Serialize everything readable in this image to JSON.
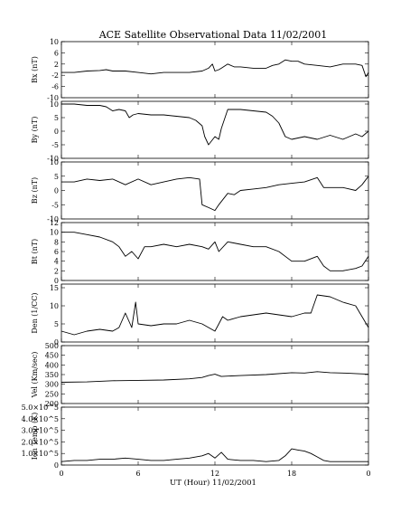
{
  "title": "ACE Satellite Observational Data   11/02/2001",
  "x_axis": {
    "label": "UT (Hour)  11/02/2001",
    "ticks": [
      {
        "hour": 0,
        "label": "0"
      },
      {
        "hour": 6,
        "label": "6"
      },
      {
        "hour": 12,
        "label": "12"
      },
      {
        "hour": 18,
        "label": "18"
      },
      {
        "hour": 24,
        "label": "0"
      }
    ]
  },
  "chart_data": [
    {
      "type": "line",
      "ylabel": "Bx (nT)",
      "ylim": [
        -10,
        10
      ],
      "yticks": [
        {
          "v": 10,
          "label": "10"
        },
        {
          "v": 6,
          "label": "6"
        },
        {
          "v": 2,
          "label": "2"
        },
        {
          "v": -2,
          "label": "-2"
        },
        {
          "v": -6,
          "label": "-6"
        },
        {
          "v": -10,
          "label": "-10"
        }
      ],
      "x": [
        0,
        1,
        2,
        3,
        3.5,
        4,
        5,
        6,
        7,
        8,
        9,
        10,
        11,
        11.5,
        11.8,
        12,
        12.3,
        12.5,
        13,
        13.5,
        14,
        15,
        16,
        16.5,
        17,
        17.5,
        18,
        18.5,
        19,
        20,
        21,
        22,
        23,
        23.5,
        23.8,
        24
      ],
      "values": [
        -1,
        -1,
        -0.5,
        -0.3,
        0,
        -0.5,
        -0.5,
        -1,
        -1.5,
        -1,
        -1,
        -1,
        -0.5,
        0.5,
        2,
        -0.5,
        0,
        0.5,
        2,
        1,
        1,
        0.5,
        0.5,
        1.5,
        2,
        3.5,
        3,
        3,
        2,
        1.5,
        1,
        2,
        2,
        1.5,
        -2.5,
        -1
      ]
    },
    {
      "type": "line",
      "ylabel": "By (nT)",
      "ylim": [
        -10,
        11
      ],
      "yticks": [
        {
          "v": 10,
          "label": "10"
        },
        {
          "v": 5,
          "label": "5"
        },
        {
          "v": 0,
          "label": "0"
        },
        {
          "v": -5,
          "label": "-5"
        },
        {
          "v": -10,
          "label": "-10"
        }
      ],
      "x": [
        0,
        1,
        2,
        3,
        3.5,
        4,
        4.5,
        5,
        5.3,
        5.6,
        6,
        7,
        8,
        9,
        10,
        10.5,
        11,
        11.2,
        11.5,
        12,
        12.3,
        12.5,
        13,
        14,
        15,
        16,
        16.5,
        17,
        17.5,
        18,
        19,
        20,
        21,
        22,
        23,
        23.5,
        24
      ],
      "values": [
        10,
        10,
        9.5,
        9.5,
        9,
        7.5,
        8,
        7.5,
        5,
        6,
        6.5,
        6,
        6,
        5.5,
        5,
        4,
        2,
        -2,
        -5,
        -2,
        -3,
        1,
        8,
        8,
        7.5,
        7,
        5.5,
        3,
        -2,
        -3,
        -2,
        -3,
        -1.5,
        -3,
        -1,
        -2,
        0
      ]
    },
    {
      "type": "line",
      "ylabel": "Bz (nT)",
      "ylim": [
        -10,
        10
      ],
      "yticks": [
        {
          "v": 10,
          "label": "10"
        },
        {
          "v": 5,
          "label": "5"
        },
        {
          "v": 0,
          "label": "0"
        },
        {
          "v": -5,
          "label": "-5"
        },
        {
          "v": -10,
          "label": "-10"
        }
      ],
      "x": [
        0,
        1,
        2,
        3,
        4,
        5,
        6,
        7,
        8,
        9,
        10,
        10.8,
        11,
        11.5,
        12,
        12.3,
        13,
        13.5,
        14,
        15,
        16,
        17,
        18,
        19,
        20,
        20.5,
        21,
        22,
        23,
        23.5,
        24
      ],
      "values": [
        3,
        3,
        4,
        3.5,
        4,
        2,
        4,
        2,
        3,
        4,
        4.5,
        4,
        -5,
        -6,
        -7,
        -5,
        -1,
        -1.5,
        0,
        0.5,
        1,
        2,
        2.5,
        3,
        4.5,
        1,
        1,
        1,
        0,
        2,
        5
      ]
    },
    {
      "type": "line",
      "ylabel": "Bt (nT)",
      "ylim": [
        0,
        12
      ],
      "yticks": [
        {
          "v": 12,
          "label": "12"
        },
        {
          "v": 10,
          "label": "10"
        },
        {
          "v": 8,
          "label": "8"
        },
        {
          "v": 6,
          "label": "6"
        },
        {
          "v": 4,
          "label": "4"
        },
        {
          "v": 2,
          "label": "2"
        },
        {
          "v": 0,
          "label": "0"
        }
      ],
      "x": [
        0,
        1,
        2,
        3,
        4,
        4.5,
        5,
        5.5,
        6,
        6.5,
        7,
        8,
        9,
        10,
        11,
        11.5,
        12,
        12.3,
        13,
        14,
        15,
        16,
        17,
        18,
        19,
        20,
        20.5,
        21,
        22,
        23,
        23.5,
        24
      ],
      "values": [
        10,
        10,
        9.5,
        9,
        8,
        7,
        5,
        6,
        4.5,
        7,
        7,
        7.5,
        7,
        7.5,
        7,
        6.5,
        8,
        6,
        8,
        7.5,
        7,
        7,
        6,
        4,
        4,
        5,
        3,
        2,
        2,
        2.5,
        3,
        5
      ]
    },
    {
      "type": "line",
      "ylabel": "Den (1/CC)",
      "ylim": [
        0,
        16
      ],
      "yticks": [
        {
          "v": 15,
          "label": "15"
        },
        {
          "v": 10,
          "label": "10"
        },
        {
          "v": 5,
          "label": "5"
        },
        {
          "v": 0,
          "label": "0"
        }
      ],
      "x": [
        0,
        1,
        2,
        3,
        4,
        4.5,
        5,
        5.5,
        5.8,
        6,
        7,
        8,
        9,
        10,
        11,
        11.5,
        12,
        12.3,
        12.6,
        13,
        14,
        15,
        16,
        17,
        18,
        19,
        19.5,
        20,
        21,
        22,
        23,
        23.5,
        24
      ],
      "values": [
        3,
        2,
        3,
        3.5,
        3,
        4,
        8,
        4,
        11,
        5,
        4.5,
        5,
        5,
        6,
        5,
        4,
        3,
        5,
        7,
        6,
        7,
        7.5,
        8,
        7.5,
        7,
        8,
        8,
        13,
        12.5,
        11,
        10,
        7,
        4
      ]
    },
    {
      "type": "line",
      "ylabel": "Vel (Km/sec)",
      "ylim": [
        200,
        500
      ],
      "yticks": [
        {
          "v": 500,
          "label": "500"
        },
        {
          "v": 450,
          "label": "450"
        },
        {
          "v": 400,
          "label": "400"
        },
        {
          "v": 350,
          "label": "350"
        },
        {
          "v": 300,
          "label": "300"
        },
        {
          "v": 250,
          "label": "250"
        },
        {
          "v": 200,
          "label": "200"
        }
      ],
      "x": [
        0,
        2,
        4,
        6,
        8,
        10,
        11,
        11.5,
        12,
        12.5,
        13,
        14,
        16,
        18,
        19,
        20,
        21,
        22,
        23,
        24
      ],
      "values": [
        310,
        312,
        318,
        320,
        322,
        328,
        335,
        345,
        352,
        340,
        342,
        345,
        350,
        360,
        358,
        365,
        360,
        358,
        355,
        352
      ]
    },
    {
      "type": "line",
      "ylabel": "Ion Temp (K)",
      "ylim": [
        0,
        500000
      ],
      "yticks": [
        {
          "v": 500000,
          "label": "5.0×10^5"
        },
        {
          "v": 400000,
          "label": "4.0×10^5"
        },
        {
          "v": 300000,
          "label": "3.0×10^5"
        },
        {
          "v": 200000,
          "label": "2.0×10^5"
        },
        {
          "v": 100000,
          "label": "1.0×10^5"
        },
        {
          "v": 0,
          "label": "0"
        }
      ],
      "x": [
        0,
        1,
        2,
        3,
        4,
        5,
        6,
        7,
        8,
        9,
        10,
        11,
        11.5,
        12,
        12.5,
        13,
        14,
        15,
        16,
        17,
        17.5,
        18,
        18.5,
        19,
        19.5,
        20,
        20.5,
        21,
        22,
        23,
        24
      ],
      "values": [
        30000,
        40000,
        40000,
        50000,
        50000,
        60000,
        50000,
        40000,
        40000,
        50000,
        60000,
        80000,
        100000,
        60000,
        110000,
        50000,
        40000,
        40000,
        30000,
        40000,
        80000,
        140000,
        130000,
        120000,
        100000,
        70000,
        40000,
        30000,
        30000,
        30000,
        30000
      ]
    }
  ]
}
